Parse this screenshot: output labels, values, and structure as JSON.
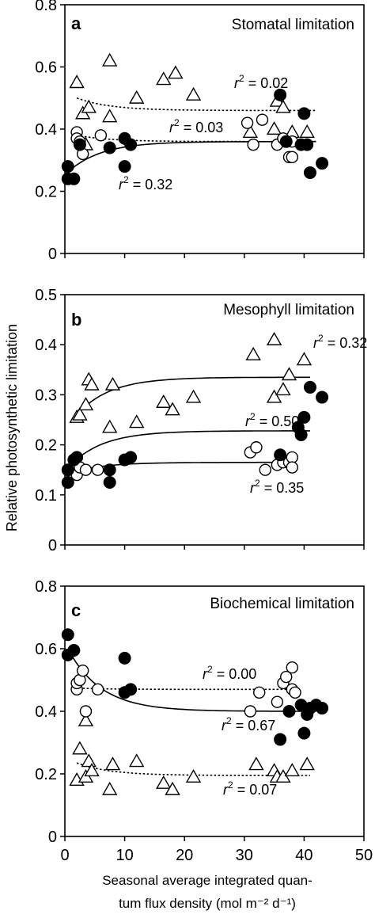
{
  "figure": {
    "ylabel": "Relative photosynthetic limitation",
    "xlabel_line1": "Seasonal average integrated quan-",
    "xlabel_line2": "tum flux density (mol m⁻² d⁻¹)"
  },
  "chart_data": [
    {
      "type": "scatter",
      "panel_letter": "a",
      "title": "Stomatal limitation",
      "ylim": [
        0,
        0.8
      ],
      "yticks": [
        "0",
        "0.2",
        "0.4",
        "0.6",
        "0.8"
      ],
      "xlim": [
        0,
        50
      ],
      "xticks": [],
      "series": [
        {
          "marker": "triangle",
          "points": [
            [
              2,
              0.55
            ],
            [
              3,
              0.45
            ],
            [
              3.5,
              0.35
            ],
            [
              4,
              0.47
            ],
            [
              7.5,
              0.62
            ],
            [
              7.5,
              0.44
            ],
            [
              12,
              0.5
            ],
            [
              16.5,
              0.56
            ],
            [
              18.5,
              0.58
            ],
            [
              21.5,
              0.51
            ],
            [
              31,
              0.39
            ],
            [
              35,
              0.4
            ],
            [
              35.5,
              0.49
            ],
            [
              36.5,
              0.47
            ],
            [
              38,
              0.39
            ],
            [
              40.5,
              0.39
            ]
          ]
        },
        {
          "marker": "open-circle",
          "points": [
            [
              2,
              0.39
            ],
            [
              2,
              0.37
            ],
            [
              2.5,
              0.36
            ],
            [
              3,
              0.32
            ],
            [
              6,
              0.38
            ],
            [
              30.5,
              0.42
            ],
            [
              31.5,
              0.35
            ],
            [
              33,
              0.43
            ],
            [
              35.5,
              0.35
            ],
            [
              36.5,
              0.37
            ],
            [
              37.5,
              0.31
            ],
            [
              38,
              0.36
            ],
            [
              38,
              0.31
            ]
          ]
        },
        {
          "marker": "filled-circle",
          "points": [
            [
              0.5,
              0.28
            ],
            [
              0.5,
              0.24
            ],
            [
              1.5,
              0.24
            ],
            [
              2.5,
              0.35
            ],
            [
              7.5,
              0.34
            ],
            [
              10,
              0.28
            ],
            [
              10,
              0.37
            ],
            [
              11,
              0.35
            ],
            [
              36,
              0.51
            ],
            [
              37,
              0.36
            ],
            [
              39.5,
              0.35
            ],
            [
              40,
              0.45
            ],
            [
              40.5,
              0.35
            ],
            [
              41,
              0.26
            ],
            [
              43,
              0.29
            ]
          ]
        }
      ],
      "fits": [
        {
          "style": "dotted",
          "r2_label": "0.02",
          "x": [
            2,
            42
          ],
          "y": [
            0.5,
            0.46
          ]
        },
        {
          "style": "dotted",
          "r2_label": "0.03",
          "x": [
            2,
            42
          ],
          "y": [
            0.38,
            0.36
          ]
        },
        {
          "style": "solid",
          "r2_label": "0.32",
          "x": [
            1,
            42
          ],
          "y": [
            0.27,
            0.36
          ]
        }
      ]
    },
    {
      "type": "scatter",
      "panel_letter": "b",
      "title": "Mesophyll limitation",
      "ylim": [
        0,
        0.5
      ],
      "yticks": [
        "0",
        "0.1",
        "0.2",
        "0.3",
        "0.4",
        "0.5"
      ],
      "xlim": [
        0,
        50
      ],
      "xticks": [],
      "series": [
        {
          "marker": "triangle",
          "points": [
            [
              2,
              0.255
            ],
            [
              2.5,
              0.26
            ],
            [
              3.5,
              0.28
            ],
            [
              4,
              0.33
            ],
            [
              4.5,
              0.32
            ],
            [
              7.5,
              0.235
            ],
            [
              8,
              0.32
            ],
            [
              12,
              0.245
            ],
            [
              16.5,
              0.285
            ],
            [
              18,
              0.27
            ],
            [
              21.5,
              0.295
            ],
            [
              31.5,
              0.38
            ],
            [
              35,
              0.41
            ],
            [
              35,
              0.295
            ],
            [
              36.5,
              0.31
            ],
            [
              37.5,
              0.34
            ],
            [
              40,
              0.37
            ]
          ]
        },
        {
          "marker": "open-circle",
          "points": [
            [
              2,
              0.14
            ],
            [
              2.5,
              0.155
            ],
            [
              3.5,
              0.15
            ],
            [
              5.5,
              0.15
            ],
            [
              31,
              0.185
            ],
            [
              32,
              0.195
            ],
            [
              33.5,
              0.15
            ],
            [
              35.5,
              0.16
            ],
            [
              36.5,
              0.165
            ],
            [
              37.5,
              0.165
            ],
            [
              38,
              0.175
            ],
            [
              38,
              0.155
            ]
          ]
        },
        {
          "marker": "filled-circle",
          "points": [
            [
              0.5,
              0.125
            ],
            [
              0.5,
              0.15
            ],
            [
              1.5,
              0.17
            ],
            [
              2,
              0.175
            ],
            [
              7.5,
              0.125
            ],
            [
              7.5,
              0.15
            ],
            [
              10,
              0.17
            ],
            [
              11,
              0.175
            ],
            [
              36,
              0.18
            ],
            [
              39,
              0.235
            ],
            [
              39.5,
              0.22
            ],
            [
              40,
              0.255
            ],
            [
              41,
              0.315
            ],
            [
              43,
              0.295
            ]
          ]
        }
      ],
      "fits": [
        {
          "style": "solid",
          "r2_label": "0.32",
          "x": [
            2,
            41
          ],
          "y": [
            0.26,
            0.335
          ]
        },
        {
          "style": "solid",
          "r2_label": "0.50",
          "x": [
            1,
            41
          ],
          "y": [
            0.16,
            0.228
          ]
        },
        {
          "style": "solid",
          "r2_label": "0.35",
          "x": [
            1,
            38
          ],
          "y": [
            0.145,
            0.165
          ]
        }
      ]
    },
    {
      "type": "scatter",
      "panel_letter": "c",
      "title": "Biochemical limitation",
      "ylim": [
        0,
        0.8
      ],
      "yticks": [
        "0",
        "0.2",
        "0.4",
        "0.6",
        "0.8"
      ],
      "xlim": [
        0,
        50
      ],
      "xticks": [
        "0",
        "10",
        "20",
        "30",
        "40",
        "50"
      ],
      "series": [
        {
          "marker": "triangle",
          "points": [
            [
              2,
              0.18
            ],
            [
              2.5,
              0.28
            ],
            [
              3.5,
              0.37
            ],
            [
              3.5,
              0.19
            ],
            [
              4,
              0.24
            ],
            [
              4.5,
              0.21
            ],
            [
              7.5,
              0.15
            ],
            [
              8,
              0.23
            ],
            [
              12,
              0.24
            ],
            [
              16.5,
              0.17
            ],
            [
              18,
              0.15
            ],
            [
              21.5,
              0.19
            ],
            [
              32,
              0.23
            ],
            [
              35,
              0.21
            ],
            [
              35.5,
              0.19
            ],
            [
              36.5,
              0.19
            ],
            [
              38,
              0.21
            ],
            [
              40.5,
              0.23
            ]
          ]
        },
        {
          "marker": "open-circle",
          "points": [
            [
              2,
              0.47
            ],
            [
              2,
              0.49
            ],
            [
              2.5,
              0.5
            ],
            [
              3,
              0.53
            ],
            [
              3.5,
              0.4
            ],
            [
              5.5,
              0.47
            ],
            [
              31,
              0.4
            ],
            [
              32.5,
              0.46
            ],
            [
              35.5,
              0.43
            ],
            [
              36.5,
              0.49
            ],
            [
              37,
              0.51
            ],
            [
              38,
              0.54
            ],
            [
              38,
              0.47
            ],
            [
              38.5,
              0.46
            ]
          ]
        },
        {
          "marker": "filled-circle",
          "points": [
            [
              0.5,
              0.645
            ],
            [
              0.5,
              0.58
            ],
            [
              1.5,
              0.595
            ],
            [
              10,
              0.57
            ],
            [
              10,
              0.46
            ],
            [
              11,
              0.47
            ],
            [
              36,
              0.31
            ],
            [
              37.5,
              0.4
            ],
            [
              39.5,
              0.42
            ],
            [
              40,
              0.33
            ],
            [
              40.5,
              0.39
            ],
            [
              41,
              0.41
            ],
            [
              42,
              0.42
            ],
            [
              43,
              0.41
            ]
          ]
        }
      ],
      "fits": [
        {
          "style": "dotted",
          "r2_label": "0.00",
          "x": [
            1,
            39
          ],
          "y": [
            0.475,
            0.47
          ]
        },
        {
          "style": "solid",
          "r2_label": "0.67",
          "x": [
            0.5,
            42
          ],
          "y": [
            0.6,
            0.4
          ]
        },
        {
          "style": "dotted",
          "r2_label": "0.07",
          "x": [
            2,
            41
          ],
          "y": [
            0.235,
            0.195
          ]
        }
      ]
    }
  ]
}
